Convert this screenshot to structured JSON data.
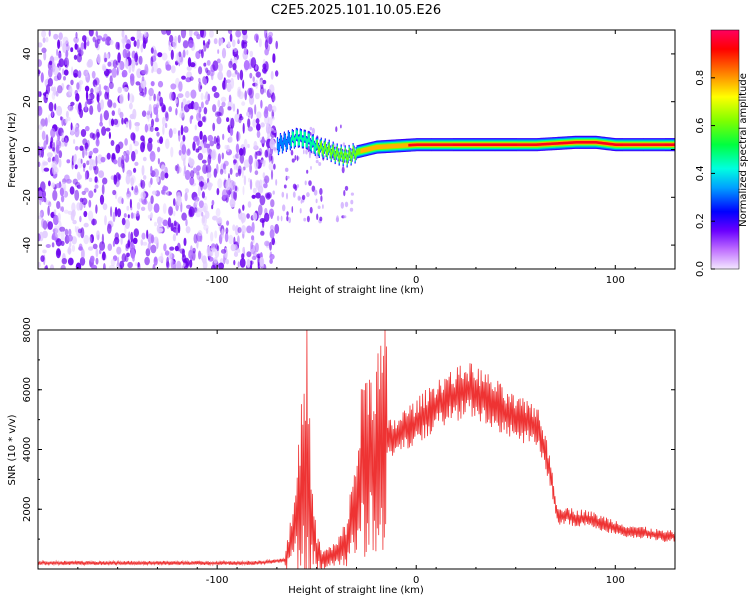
{
  "title": "C2E5.2025.101.10.05.E26",
  "colors": {
    "snr_line": "#ee3333",
    "axis": "#000000"
  },
  "chart_data": [
    {
      "type": "heatmap",
      "xlabel": "Height of straight line (km)",
      "ylabel": "Frequency (Hz)",
      "xlim": [
        -190,
        130
      ],
      "ylim": [
        -50,
        50
      ],
      "x_ticks": [
        "-100",
        "0",
        "100"
      ],
      "y_ticks": [
        "-40",
        "-20",
        "0",
        "20",
        "40"
      ],
      "noise_region_x": [
        -190,
        -70
      ],
      "ridge": {
        "x": [
          -70,
          -60,
          -55,
          -50,
          -45,
          -40,
          -35,
          -30,
          -25,
          -20,
          -10,
          0,
          20,
          40,
          60,
          70,
          80,
          90,
          100,
          130
        ],
        "frequency": [
          2,
          5,
          4,
          1,
          0,
          -2,
          -3,
          -1,
          0,
          1,
          1.5,
          2,
          2,
          2,
          2,
          2.5,
          3,
          3,
          2,
          2
        ],
        "amplitude": [
          0.3,
          0.45,
          0.5,
          0.55,
          0.55,
          0.6,
          0.65,
          0.7,
          0.75,
          0.8,
          0.85,
          0.9,
          0.92,
          0.95,
          0.95,
          0.97,
          0.98,
          0.95,
          0.95,
          0.95
        ]
      },
      "colorbar": {
        "label": "Normalized spectral amplitude",
        "range": [
          0,
          1
        ],
        "ticks": [
          "0.0",
          "0.2",
          "0.4",
          "0.6",
          "0.8"
        ]
      }
    },
    {
      "type": "line",
      "xlabel": "Height of straight line (km)",
      "ylabel": "SNR (10 * v/v)",
      "xlim": [
        -190,
        130
      ],
      "ylim": [
        0,
        8000
      ],
      "x_ticks": [
        "-100",
        "0",
        "100"
      ],
      "y_ticks": [
        "2000",
        "4000",
        "6000",
        "8000"
      ],
      "series": [
        {
          "x": [
            -190,
            -150,
            -100,
            -80,
            -66,
            -62,
            -58,
            -55,
            -52,
            -50,
            -47,
            -44,
            -40,
            -35,
            -30,
            -27,
            -24,
            -20,
            -15,
            -10,
            -5,
            0,
            5,
            10,
            15,
            20,
            25,
            30,
            35,
            40,
            45,
            50,
            55,
            60,
            62,
            65,
            68,
            70,
            72,
            75,
            80,
            85,
            90,
            95,
            100,
            105,
            110,
            115,
            120,
            125,
            130
          ],
          "y": [
            200,
            200,
            200,
            200,
            300,
            1000,
            2500,
            4000,
            1200,
            600,
            300,
            400,
            500,
            900,
            2200,
            3500,
            3800,
            4000,
            4300,
            4400,
            4700,
            4900,
            5200,
            5500,
            5700,
            5800,
            6000,
            5900,
            5700,
            5500,
            5200,
            5000,
            4900,
            4800,
            4700,
            3800,
            3000,
            2000,
            1800,
            1800,
            1700,
            1700,
            1600,
            1500,
            1400,
            1300,
            1250,
            1200,
            1150,
            1100,
            1100
          ]
        }
      ]
    }
  ]
}
